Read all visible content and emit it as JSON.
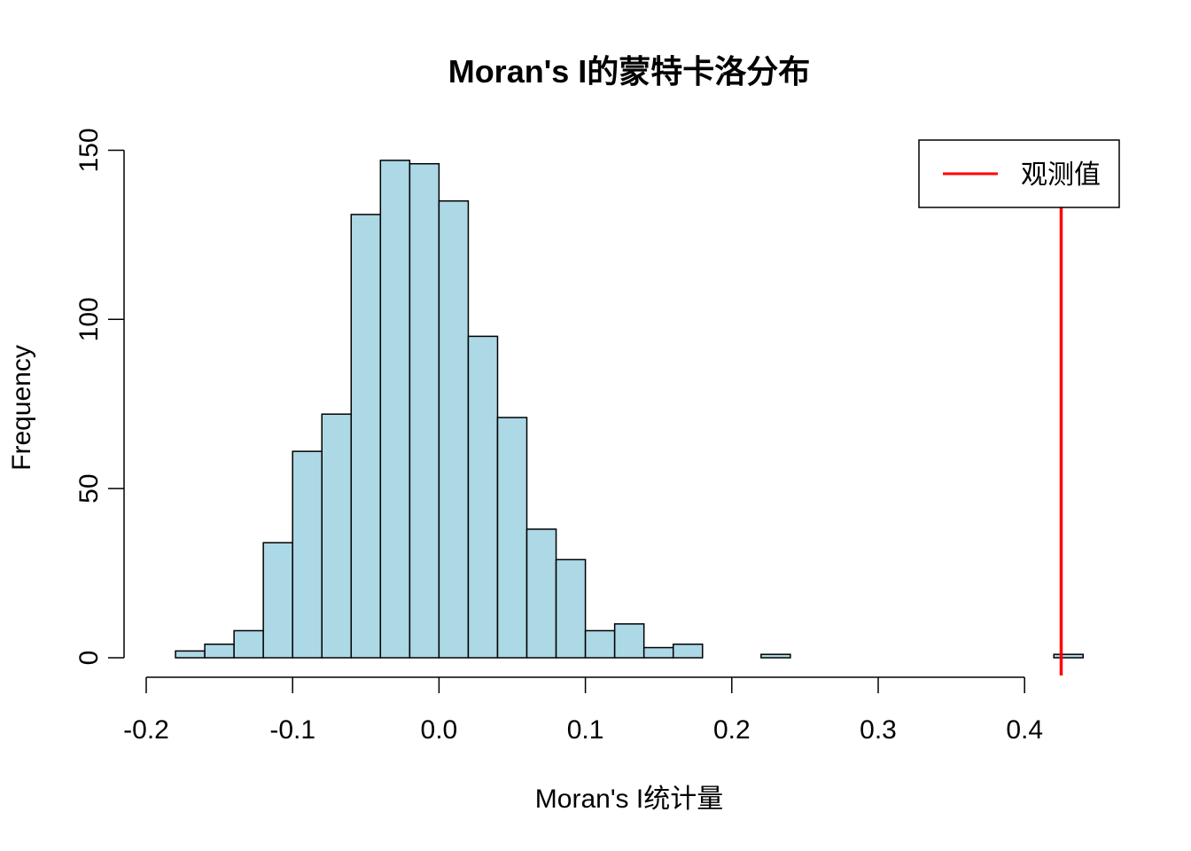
{
  "chart_data": {
    "type": "bar",
    "title": "Moran's I的蒙特卡洛分布",
    "xlabel": "Moran's I统计量",
    "ylabel": "Frequency",
    "xlim": [
      -0.2,
      0.45
    ],
    "ylim": [
      0,
      150
    ],
    "x_ticks": [
      -0.2,
      -0.1,
      0.0,
      0.1,
      0.2,
      0.3,
      0.4
    ],
    "x_tick_labels": [
      "-0.2",
      "-0.1",
      "0.0",
      "0.1",
      "0.2",
      "0.3",
      "0.4"
    ],
    "y_ticks": [
      0,
      50,
      100,
      150
    ],
    "y_tick_labels": [
      "0",
      "50",
      "100",
      "150"
    ],
    "bin_width": 0.02,
    "bins": [
      {
        "start": -0.18,
        "end": -0.16,
        "count": 2
      },
      {
        "start": -0.16,
        "end": -0.14,
        "count": 4
      },
      {
        "start": -0.14,
        "end": -0.12,
        "count": 8
      },
      {
        "start": -0.12,
        "end": -0.1,
        "count": 34
      },
      {
        "start": -0.1,
        "end": -0.08,
        "count": 61
      },
      {
        "start": -0.08,
        "end": -0.06,
        "count": 72
      },
      {
        "start": -0.06,
        "end": -0.04,
        "count": 131
      },
      {
        "start": -0.04,
        "end": -0.02,
        "count": 147
      },
      {
        "start": -0.02,
        "end": 0.0,
        "count": 146
      },
      {
        "start": 0.0,
        "end": 0.02,
        "count": 135
      },
      {
        "start": 0.02,
        "end": 0.04,
        "count": 95
      },
      {
        "start": 0.04,
        "end": 0.06,
        "count": 71
      },
      {
        "start": 0.06,
        "end": 0.08,
        "count": 38
      },
      {
        "start": 0.08,
        "end": 0.1,
        "count": 29
      },
      {
        "start": 0.1,
        "end": 0.12,
        "count": 8
      },
      {
        "start": 0.12,
        "end": 0.14,
        "count": 10
      },
      {
        "start": 0.14,
        "end": 0.16,
        "count": 3
      },
      {
        "start": 0.16,
        "end": 0.18,
        "count": 4
      },
      {
        "start": 0.18,
        "end": 0.2,
        "count": 0
      },
      {
        "start": 0.2,
        "end": 0.22,
        "count": 0
      },
      {
        "start": 0.22,
        "end": 0.24,
        "count": 1
      },
      {
        "start": 0.24,
        "end": 0.26,
        "count": 0
      },
      {
        "start": 0.26,
        "end": 0.28,
        "count": 0
      },
      {
        "start": 0.28,
        "end": 0.3,
        "count": 0
      },
      {
        "start": 0.3,
        "end": 0.32,
        "count": 0
      },
      {
        "start": 0.32,
        "end": 0.34,
        "count": 0
      },
      {
        "start": 0.34,
        "end": 0.36,
        "count": 0
      },
      {
        "start": 0.36,
        "end": 0.38,
        "count": 0
      },
      {
        "start": 0.38,
        "end": 0.4,
        "count": 0
      },
      {
        "start": 0.4,
        "end": 0.42,
        "count": 0
      },
      {
        "start": 0.42,
        "end": 0.44,
        "count": 1
      }
    ],
    "bar_fill": "#add8e6",
    "bar_stroke": "#000000",
    "observed_value": 0.425,
    "observed_line_color": "#ff0000",
    "legend": {
      "position": "top-right",
      "entries": [
        {
          "label": "观测值",
          "color": "#ff0000"
        }
      ]
    },
    "grid": false
  }
}
